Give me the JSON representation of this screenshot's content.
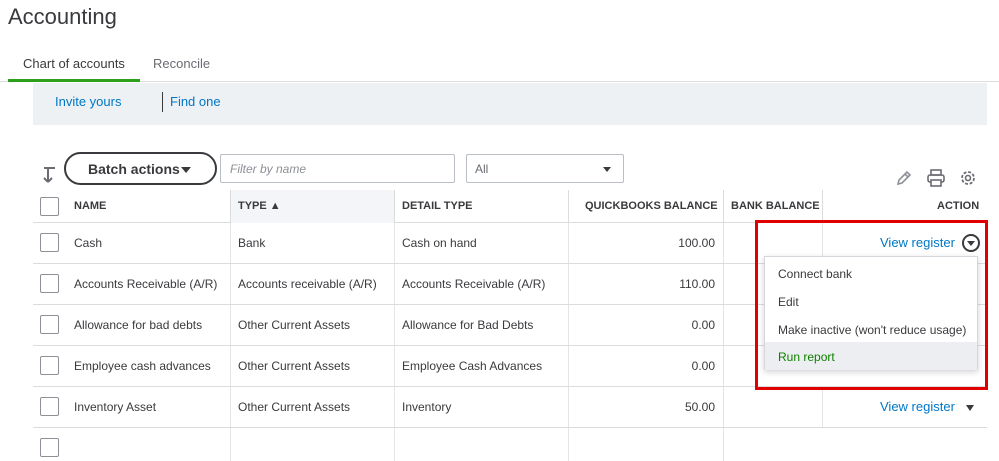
{
  "page": {
    "title": "Accounting"
  },
  "tabs": [
    {
      "label": "Chart of accounts",
      "active": true
    },
    {
      "label": "Reconcile",
      "active": false
    }
  ],
  "banner": {
    "invite_link": "Invite yours",
    "find_link": "Find one"
  },
  "toolbar": {
    "batch_actions_label": "Batch actions",
    "filter_placeholder": "Filter by name",
    "filter_value": "",
    "select_value": "All"
  },
  "table": {
    "headers": {
      "name": "NAME",
      "type": "TYPE ▲",
      "detail_type": "DETAIL TYPE",
      "qb_balance": "QUICKBOOKS BALANCE",
      "bank_balance": "BANK BALANCE",
      "action": "ACTION"
    },
    "rows": [
      {
        "name": "Cash",
        "type": "Bank",
        "detail_type": "Cash on hand",
        "qb_balance": "100.00",
        "bank_balance": "",
        "action": "View register"
      },
      {
        "name": "Accounts Receivable (A/R)",
        "type": "Accounts receivable (A/R)",
        "detail_type": "Accounts Receivable (A/R)",
        "qb_balance": "110.00",
        "bank_balance": "",
        "action": ""
      },
      {
        "name": "Allowance for bad debts",
        "type": "Other Current Assets",
        "detail_type": "Allowance for Bad Debts",
        "qb_balance": "0.00",
        "bank_balance": "",
        "action": ""
      },
      {
        "name": "Employee cash advances",
        "type": "Other Current Assets",
        "detail_type": "Employee Cash Advances",
        "qb_balance": "0.00",
        "bank_balance": "",
        "action": ""
      },
      {
        "name": "Inventory Asset",
        "type": "Other Current Assets",
        "detail_type": "Inventory",
        "qb_balance": "50.00",
        "bank_balance": "",
        "action": "View register"
      }
    ]
  },
  "action_menu": {
    "items": [
      "Connect bank",
      "Edit",
      "Make inactive (won't reduce usage)",
      "Run report"
    ],
    "highlighted_index": 3
  },
  "colors": {
    "accent_green": "#2ca01c",
    "link_blue": "#0077c5",
    "highlight_red": "#e00000",
    "menu_highlight_text": "#108000"
  }
}
